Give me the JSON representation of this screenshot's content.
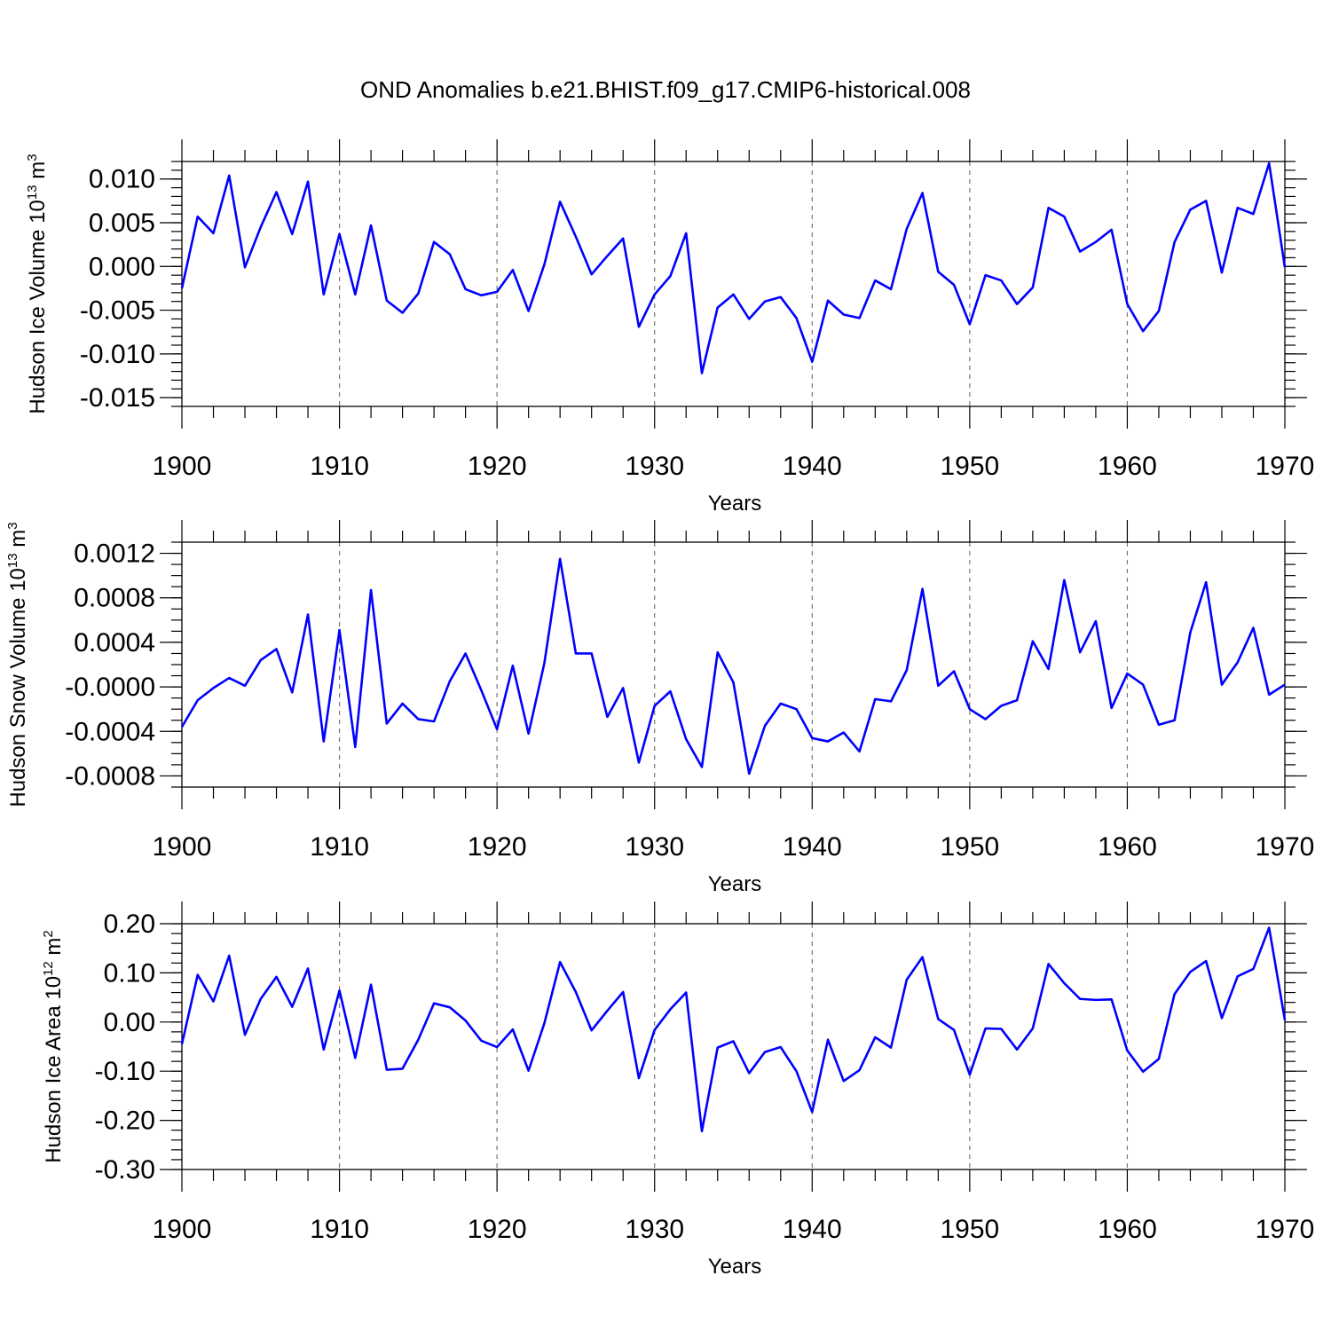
{
  "title": "OND Anomalies b.e21.BHIST.f09_g17.CMIP6-historical.008",
  "colors": {
    "series": "#0000ff",
    "axis": "#000000",
    "grid": "#777777"
  },
  "chart_data": [
    {
      "type": "line",
      "ylabel_main": "Hudson Ice Volume 10",
      "ylabel_sup1": "13",
      "ylabel_mid": " m",
      "ylabel_sup2": "3",
      "xlabel": "Years",
      "xlim": [
        1900,
        1970
      ],
      "ylim": [
        -0.016,
        0.012
      ],
      "x_ticks": [
        "1900",
        "1910",
        "1920",
        "1930",
        "1940",
        "1950",
        "1960",
        "1970"
      ],
      "y_ticks": [
        {
          "value": 0.01,
          "label": "0.010"
        },
        {
          "value": 0.005,
          "label": "0.005"
        },
        {
          "value": 0.0,
          "label": "0.000"
        },
        {
          "value": -0.005,
          "label": "-0.005"
        },
        {
          "value": -0.01,
          "label": "-0.010"
        },
        {
          "value": -0.015,
          "label": "-0.015"
        }
      ],
      "y_minor_step": 0.001,
      "start_year": 1900,
      "values": [
        -0.0025,
        0.0057,
        0.0038,
        0.0104,
        -0.0001,
        0.0045,
        0.0085,
        0.0037,
        0.0097,
        -0.0032,
        0.0037,
        -0.0032,
        0.0047,
        -0.0039,
        -0.0053,
        -0.0031,
        0.0028,
        0.0014,
        -0.0026,
        -0.0033,
        -0.0029,
        -0.0004,
        -0.0051,
        0.0002,
        0.0074,
        0.0034,
        -0.0009,
        0.0012,
        0.0032,
        -0.0069,
        -0.0032,
        -0.0011,
        0.0038,
        -0.0122,
        -0.0047,
        -0.0032,
        -0.006,
        -0.004,
        -0.0035,
        -0.0059,
        -0.0109,
        -0.0039,
        -0.0055,
        -0.0059,
        -0.0016,
        -0.0026,
        0.0043,
        0.0084,
        -0.0006,
        -0.0021,
        -0.0066,
        -0.001,
        -0.0016,
        -0.0043,
        -0.0024,
        0.0067,
        0.0057,
        0.0017,
        0.0028,
        0.0042,
        -0.0043,
        -0.0074,
        -0.0051,
        0.0028,
        0.0065,
        0.0075,
        -0.0007,
        0.0067,
        0.006,
        0.0118,
        -0.0001
      ]
    },
    {
      "type": "line",
      "ylabel_main": "Hudson Snow Volume 10",
      "ylabel_sup1": "13",
      "ylabel_mid": " m",
      "ylabel_sup2": "3",
      "xlabel": "Years",
      "xlim": [
        1900,
        1970
      ],
      "ylim": [
        -0.0009,
        0.0013
      ],
      "x_ticks": [
        "1900",
        "1910",
        "1920",
        "1930",
        "1940",
        "1950",
        "1960",
        "1970"
      ],
      "y_ticks": [
        {
          "value": 0.0012,
          "label": "0.0012"
        },
        {
          "value": 0.0008,
          "label": "0.0008"
        },
        {
          "value": 0.0004,
          "label": "0.0004"
        },
        {
          "value": 0.0,
          "label": "-0.0000"
        },
        {
          "value": -0.0004,
          "label": "-0.0004"
        },
        {
          "value": -0.0008,
          "label": "-0.0008"
        }
      ],
      "y_minor_step": 0.0001,
      "start_year": 1900,
      "values": [
        -0.00036,
        -0.00012,
        -1e-05,
        8e-05,
        1e-05,
        0.00024,
        0.00034,
        -5e-05,
        0.00065,
        -0.00049,
        0.00051,
        -0.00054,
        0.00087,
        -0.00033,
        -0.00015,
        -0.00029,
        -0.00031,
        5e-05,
        0.0003,
        -3e-05,
        -0.00038,
        0.00019,
        -0.00042,
        0.00021,
        0.00115,
        0.0003,
        0.0003,
        -0.00027,
        -1e-05,
        -0.00068,
        -0.00017,
        -4e-05,
        -0.00047,
        -0.00072,
        0.00031,
        4e-05,
        -0.00078,
        -0.00035,
        -0.00015,
        -0.0002,
        -0.00046,
        -0.00049,
        -0.00041,
        -0.00058,
        -0.00011,
        -0.00013,
        0.00015,
        0.00088,
        1e-05,
        0.00014,
        -0.0002,
        -0.00029,
        -0.00017,
        -0.00012,
        0.00041,
        0.00016,
        0.00096,
        0.00031,
        0.00059,
        -0.00019,
        0.00012,
        2e-05,
        -0.00034,
        -0.0003,
        0.00049,
        0.00094,
        2e-05,
        0.00022,
        0.00053,
        -7e-05,
        2e-05
      ]
    },
    {
      "type": "line",
      "ylabel_main": "Hudson Ice Area 10",
      "ylabel_sup1": "12",
      "ylabel_mid": " m",
      "ylabel_sup2": "2",
      "xlabel": "Years",
      "xlim": [
        1900,
        1970
      ],
      "ylim": [
        -0.3,
        0.2
      ],
      "x_ticks": [
        "1900",
        "1910",
        "1920",
        "1930",
        "1940",
        "1950",
        "1960",
        "1970"
      ],
      "y_ticks": [
        {
          "value": 0.2,
          "label": "0.20"
        },
        {
          "value": 0.1,
          "label": "0.10"
        },
        {
          "value": 0.0,
          "label": "0.00"
        },
        {
          "value": -0.1,
          "label": "-0.10"
        },
        {
          "value": -0.2,
          "label": "-0.20"
        },
        {
          "value": -0.3,
          "label": "-0.30"
        }
      ],
      "y_minor_step": 0.02,
      "start_year": 1900,
      "values": [
        -0.045,
        0.096,
        0.042,
        0.135,
        -0.026,
        0.047,
        0.092,
        0.031,
        0.109,
        -0.056,
        0.064,
        -0.073,
        0.076,
        -0.097,
        -0.095,
        -0.036,
        0.038,
        0.03,
        0.003,
        -0.038,
        -0.051,
        -0.015,
        -0.099,
        -0.003,
        0.122,
        0.061,
        -0.017,
        0.023,
        0.061,
        -0.114,
        -0.016,
        0.026,
        0.06,
        -0.222,
        -0.052,
        -0.039,
        -0.104,
        -0.061,
        -0.051,
        -0.1,
        -0.183,
        -0.036,
        -0.12,
        -0.098,
        -0.031,
        -0.052,
        0.086,
        0.132,
        0.006,
        -0.016,
        -0.107,
        -0.013,
        -0.014,
        -0.056,
        -0.013,
        0.118,
        0.079,
        0.047,
        0.045,
        0.046,
        -0.058,
        -0.101,
        -0.075,
        0.057,
        0.102,
        0.124,
        0.008,
        0.093,
        0.108,
        0.192,
        0.004
      ]
    }
  ]
}
